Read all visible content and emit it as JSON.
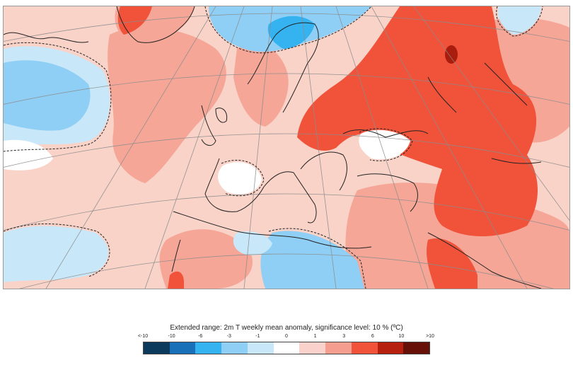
{
  "legend": {
    "title": "Extended range: 2m T weekly mean anomaly, significance level: 10 % (ºC)",
    "tick_labels": [
      "<-10",
      "-10",
      "-6",
      "-3",
      "-1",
      "0",
      "1",
      "3",
      "6",
      "10",
      ">10"
    ],
    "colors": [
      "#0b3a5c",
      "#1870b8",
      "#35b2f0",
      "#8fcff5",
      "#c8e8fa",
      "#ffffff",
      "#fad2cb",
      "#f59e8f",
      "#f0533a",
      "#b5200f",
      "#661008"
    ]
  },
  "map": {
    "region": "Europe and North Atlantic",
    "variable": "2m temperature weekly mean anomaly",
    "significance_contour": "dashed",
    "colors": {
      "land_outline": "#222222",
      "graticule": "#8c8c8c",
      "background_anomaly": "#f9d2c8"
    }
  }
}
